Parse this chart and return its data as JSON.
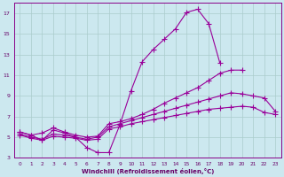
{
  "background_color": "#cce8ef",
  "grid_color": "#aacccc",
  "line_color": "#990099",
  "tick_color": "#660066",
  "xlabel": "Windchill (Refroidissement éolien,°C)",
  "xlim": [
    -0.5,
    23.5
  ],
  "ylim": [
    3,
    18
  ],
  "xticks": [
    0,
    1,
    2,
    3,
    4,
    5,
    6,
    7,
    8,
    9,
    10,
    11,
    12,
    13,
    14,
    15,
    16,
    17,
    18,
    19,
    20,
    21,
    22,
    23
  ],
  "yticks": [
    3,
    5,
    7,
    9,
    11,
    13,
    15,
    17
  ],
  "line1_x": [
    0,
    1,
    2,
    3,
    4,
    5,
    6,
    7,
    8,
    9,
    10,
    11,
    12,
    13,
    14,
    15,
    16,
    17,
    18,
    19,
    20,
    21,
    22,
    23
  ],
  "line1_y": [
    5.5,
    5.2,
    4.7,
    5.7,
    5.4,
    5.0,
    4.0,
    3.5,
    3.5,
    6.2,
    9.5,
    12.3,
    13.5,
    14.5,
    15.5,
    17.1,
    17.4,
    16.0,
    12.2,
    null,
    null,
    null,
    null,
    null
  ],
  "line2_x": [
    0,
    1,
    2,
    3,
    4,
    5,
    6,
    7,
    8,
    9,
    10,
    11,
    12,
    13,
    14,
    15,
    16,
    17,
    18,
    19,
    20,
    21,
    22,
    23
  ],
  "line2_y": [
    5.5,
    5.2,
    5.4,
    5.9,
    5.5,
    5.2,
    5.0,
    5.1,
    6.3,
    6.5,
    6.8,
    7.2,
    7.7,
    8.3,
    8.8,
    9.3,
    9.8,
    10.5,
    11.2,
    11.5,
    11.5,
    null,
    null,
    null
  ],
  "line3_x": [
    0,
    1,
    2,
    3,
    4,
    5,
    6,
    7,
    8,
    9,
    10,
    11,
    12,
    13,
    14,
    15,
    16,
    17,
    18,
    19,
    20,
    21,
    22,
    23
  ],
  "line3_y": [
    5.3,
    5.0,
    4.8,
    5.3,
    5.2,
    5.0,
    4.8,
    5.0,
    6.0,
    6.3,
    6.6,
    6.9,
    7.2,
    7.5,
    7.8,
    8.1,
    8.4,
    8.7,
    9.0,
    9.3,
    9.2,
    9.0,
    8.8,
    7.5
  ],
  "line4_x": [
    0,
    1,
    2,
    3,
    4,
    5,
    6,
    7,
    8,
    9,
    10,
    11,
    12,
    13,
    14,
    15,
    16,
    17,
    18,
    19,
    20,
    21,
    22,
    23
  ],
  "line4_y": [
    5.2,
    4.9,
    4.7,
    5.1,
    5.0,
    4.9,
    4.7,
    4.8,
    5.8,
    6.0,
    6.3,
    6.5,
    6.7,
    6.9,
    7.1,
    7.3,
    7.5,
    7.7,
    7.8,
    7.9,
    8.0,
    7.9,
    7.4,
    7.2
  ]
}
